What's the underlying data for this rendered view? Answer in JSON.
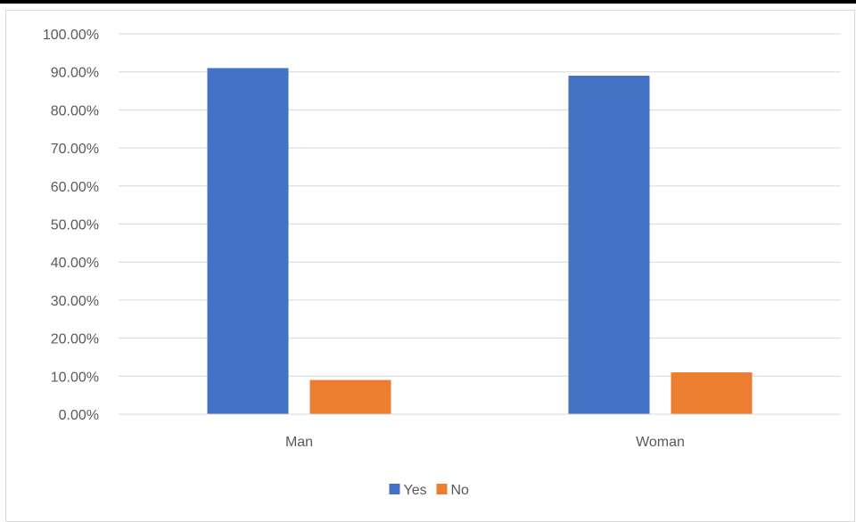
{
  "chart_data": {
    "type": "bar",
    "categories": [
      "Man",
      "Woman"
    ],
    "series": [
      {
        "name": "Yes",
        "values": [
          0.91,
          0.89
        ],
        "color": "#4472c4"
      },
      {
        "name": "No",
        "values": [
          0.09,
          0.11
        ],
        "color": "#ed7d31"
      }
    ],
    "ylim": [
      0,
      1
    ],
    "yticks": [
      "0.00%",
      "10.00%",
      "20.00%",
      "30.00%",
      "40.00%",
      "50.00%",
      "60.00%",
      "70.00%",
      "80.00%",
      "90.00%",
      "100.00%"
    ],
    "grid": true,
    "legend_position": "bottom"
  }
}
